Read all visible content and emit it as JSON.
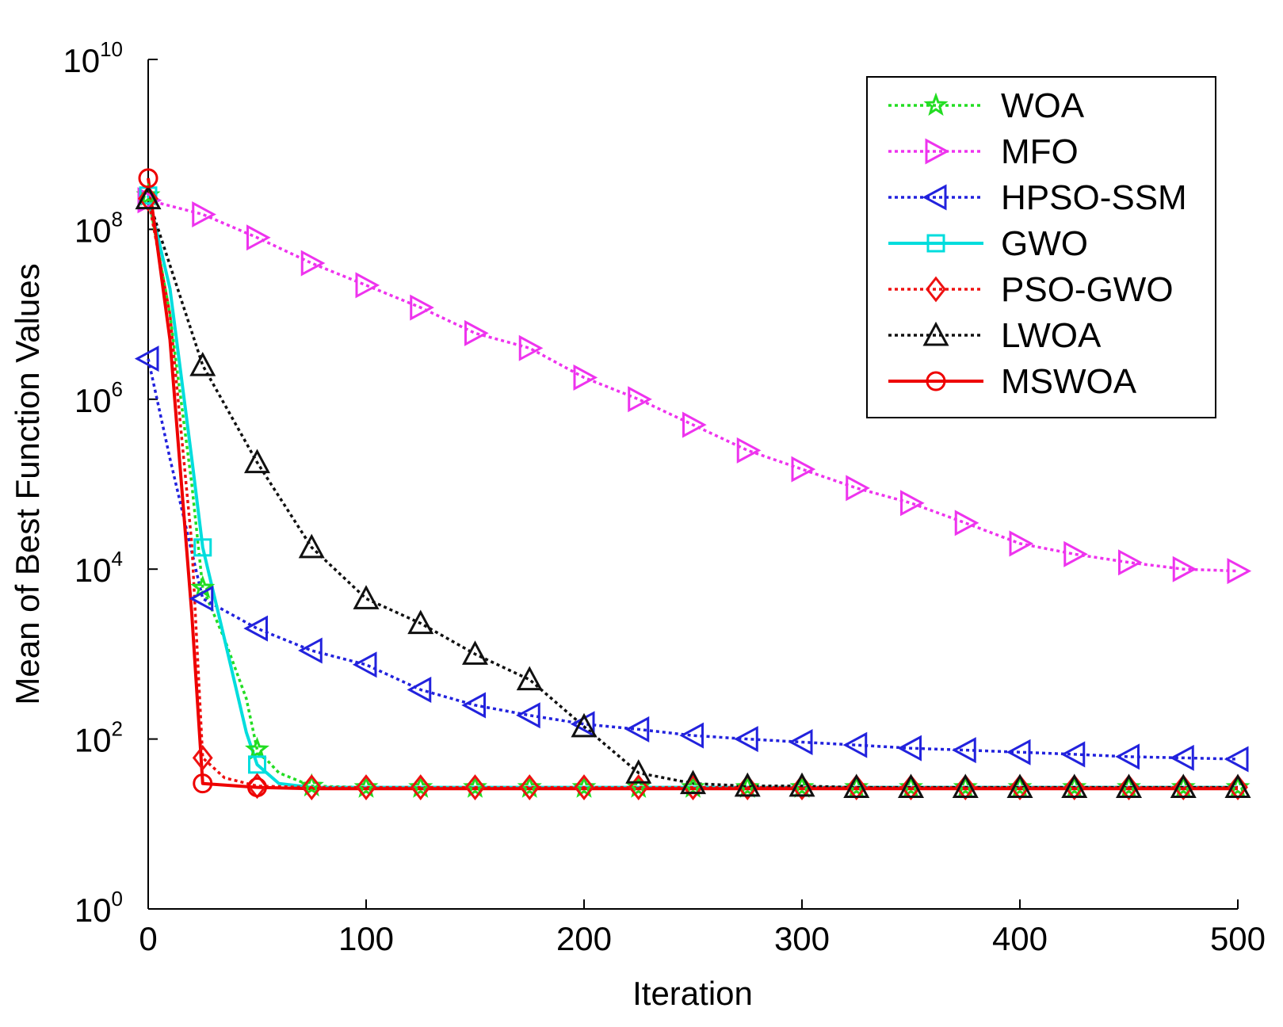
{
  "chart_data": {
    "type": "line",
    "title": "",
    "xlabel": "Iteration",
    "ylabel": "Mean of Best Function Values",
    "xlim": [
      0,
      500
    ],
    "ylim_log10": [
      0,
      10
    ],
    "yscale": "log",
    "x_ticks": [
      "0",
      "100",
      "200",
      "300",
      "400",
      "500"
    ],
    "y_ticks": [
      {
        "base": "10",
        "exp": "0"
      },
      {
        "base": "10",
        "exp": "2"
      },
      {
        "base": "10",
        "exp": "4"
      },
      {
        "base": "10",
        "exp": "6"
      },
      {
        "base": "10",
        "exp": "8"
      },
      {
        "base": "10",
        "exp": "10"
      }
    ],
    "legend_position": "top-right",
    "series": [
      {
        "name": "WOA",
        "color": "#22dd22",
        "dash": "dotted",
        "marker": "star",
        "lines": [
          [
            0,
            250000000.0
          ],
          [
            10,
            10000000.0
          ],
          [
            20,
            100000.0
          ],
          [
            25,
            6000
          ],
          [
            35,
            1500
          ],
          [
            45,
            300
          ],
          [
            50,
            75
          ],
          [
            60,
            40
          ],
          [
            75,
            28
          ],
          [
            100,
            27
          ],
          [
            150,
            27
          ],
          [
            200,
            27
          ],
          [
            250,
            27
          ],
          [
            300,
            27
          ],
          [
            350,
            27
          ],
          [
            400,
            27
          ],
          [
            450,
            27
          ],
          [
            500,
            27
          ]
        ],
        "markers": [
          [
            0,
            250000000.0
          ],
          [
            25,
            6000
          ],
          [
            50,
            75
          ],
          [
            75,
            28
          ],
          [
            100,
            27
          ],
          [
            125,
            27
          ],
          [
            150,
            27
          ],
          [
            175,
            27
          ],
          [
            200,
            27
          ],
          [
            225,
            27
          ],
          [
            250,
            27
          ],
          [
            275,
            27
          ],
          [
            300,
            27
          ],
          [
            325,
            27
          ],
          [
            350,
            27
          ],
          [
            375,
            27
          ],
          [
            400,
            27
          ],
          [
            425,
            27
          ],
          [
            450,
            27
          ],
          [
            475,
            27
          ],
          [
            500,
            27
          ]
        ]
      },
      {
        "name": "MFO",
        "color": "#ee33ee",
        "dash": "dotted",
        "marker": "triangle-right",
        "lines": [
          [
            0,
            220000000.0
          ],
          [
            25,
            150000000.0
          ],
          [
            50,
            80000000.0
          ],
          [
            75,
            40000000.0
          ],
          [
            100,
            22000000.0
          ],
          [
            125,
            12000000.0
          ],
          [
            150,
            6000000.0
          ],
          [
            175,
            4000000.0
          ],
          [
            200,
            1800000.0
          ],
          [
            225,
            1000000.0
          ],
          [
            250,
            500000.0
          ],
          [
            275,
            250000.0
          ],
          [
            300,
            150000.0
          ],
          [
            325,
            90000.0
          ],
          [
            350,
            60000.0
          ],
          [
            375,
            35000.0
          ],
          [
            400,
            20000.0
          ],
          [
            425,
            15000.0
          ],
          [
            450,
            12000.0
          ],
          [
            475,
            10000.0
          ],
          [
            500,
            9500
          ]
        ],
        "markers": [
          [
            0,
            220000000.0
          ],
          [
            25,
            150000000.0
          ],
          [
            50,
            80000000.0
          ],
          [
            75,
            40000000.0
          ],
          [
            100,
            22000000.0
          ],
          [
            125,
            12000000.0
          ],
          [
            150,
            6000000.0
          ],
          [
            175,
            4000000.0
          ],
          [
            200,
            1800000.0
          ],
          [
            225,
            1000000.0
          ],
          [
            250,
            500000.0
          ],
          [
            275,
            250000.0
          ],
          [
            300,
            150000.0
          ],
          [
            325,
            90000.0
          ],
          [
            350,
            60000.0
          ],
          [
            375,
            35000.0
          ],
          [
            400,
            20000.0
          ],
          [
            425,
            15000.0
          ],
          [
            450,
            12000.0
          ],
          [
            475,
            10000.0
          ],
          [
            500,
            9500
          ]
        ]
      },
      {
        "name": "HPSO-SSM",
        "color": "#2222dd",
        "dash": "dotted",
        "marker": "triangle-left",
        "lines": [
          [
            0,
            3000000.0
          ],
          [
            10,
            200000.0
          ],
          [
            25,
            4500
          ],
          [
            50,
            2000
          ],
          [
            75,
            1100
          ],
          [
            100,
            750
          ],
          [
            125,
            380
          ],
          [
            150,
            250
          ],
          [
            175,
            190
          ],
          [
            200,
            150
          ],
          [
            225,
            130
          ],
          [
            250,
            110
          ],
          [
            275,
            100
          ],
          [
            300,
            92
          ],
          [
            325,
            85
          ],
          [
            350,
            78
          ],
          [
            375,
            74
          ],
          [
            400,
            70
          ],
          [
            425,
            66
          ],
          [
            450,
            62
          ],
          [
            475,
            60
          ],
          [
            500,
            58
          ]
        ],
        "markers": [
          [
            0,
            3000000.0
          ],
          [
            25,
            4500
          ],
          [
            50,
            2000
          ],
          [
            75,
            1100
          ],
          [
            100,
            750
          ],
          [
            125,
            380
          ],
          [
            150,
            250
          ],
          [
            175,
            190
          ],
          [
            200,
            150
          ],
          [
            225,
            130
          ],
          [
            250,
            110
          ],
          [
            275,
            100
          ],
          [
            300,
            92
          ],
          [
            325,
            85
          ],
          [
            350,
            78
          ],
          [
            375,
            74
          ],
          [
            400,
            70
          ],
          [
            425,
            66
          ],
          [
            450,
            62
          ],
          [
            475,
            60
          ],
          [
            500,
            58
          ]
        ]
      },
      {
        "name": "GWO",
        "color": "#00dddd",
        "dash": "solid",
        "marker": "square",
        "lines": [
          [
            0,
            250000000.0
          ],
          [
            10,
            20000000.0
          ],
          [
            20,
            200000.0
          ],
          [
            25,
            18000.0
          ],
          [
            35,
            1500
          ],
          [
            45,
            120
          ],
          [
            50,
            50
          ],
          [
            60,
            30
          ],
          [
            75,
            27
          ],
          [
            100,
            27
          ],
          [
            200,
            27
          ],
          [
            300,
            27
          ],
          [
            400,
            27
          ],
          [
            500,
            27
          ]
        ],
        "markers": [
          [
            0,
            250000000.0
          ],
          [
            25,
            18000.0
          ],
          [
            50,
            50
          ]
        ]
      },
      {
        "name": "PSO-GWO",
        "color": "#ee1111",
        "dash": "dotted",
        "marker": "diamond",
        "lines": [
          [
            0,
            230000000.0
          ],
          [
            10,
            10000000.0
          ],
          [
            20,
            20000.0
          ],
          [
            25,
            60
          ],
          [
            35,
            35
          ],
          [
            50,
            28
          ],
          [
            75,
            27
          ],
          [
            100,
            27
          ],
          [
            200,
            27
          ],
          [
            300,
            27
          ],
          [
            400,
            27
          ],
          [
            500,
            27
          ]
        ],
        "markers": [
          [
            0,
            230000000.0
          ],
          [
            25,
            60
          ],
          [
            50,
            28
          ],
          [
            75,
            27
          ],
          [
            100,
            27
          ],
          [
            125,
            27
          ],
          [
            150,
            27
          ],
          [
            175,
            27
          ],
          [
            200,
            27
          ],
          [
            225,
            27
          ],
          [
            250,
            27
          ],
          [
            275,
            27
          ],
          [
            300,
            27
          ],
          [
            325,
            27
          ],
          [
            350,
            27
          ],
          [
            375,
            27
          ],
          [
            400,
            27
          ],
          [
            425,
            27
          ],
          [
            450,
            27
          ],
          [
            475,
            27
          ],
          [
            500,
            27
          ]
        ]
      },
      {
        "name": "LWOA",
        "color": "#111111",
        "dash": "dotted",
        "marker": "triangle-up",
        "lines": [
          [
            0,
            230000000.0
          ],
          [
            25,
            2500000.0
          ],
          [
            50,
            180000.0
          ],
          [
            75,
            18000.0
          ],
          [
            100,
            4500
          ],
          [
            125,
            2300
          ],
          [
            150,
            1000
          ],
          [
            175,
            500
          ],
          [
            200,
            140
          ],
          [
            225,
            40
          ],
          [
            250,
            30
          ],
          [
            275,
            28
          ],
          [
            300,
            28
          ],
          [
            325,
            27
          ],
          [
            350,
            27
          ],
          [
            375,
            27
          ],
          [
            400,
            27
          ],
          [
            425,
            27
          ],
          [
            450,
            27
          ],
          [
            475,
            27
          ],
          [
            500,
            27
          ]
        ],
        "markers": [
          [
            0,
            230000000.0
          ],
          [
            25,
            2500000.0
          ],
          [
            50,
            180000.0
          ],
          [
            75,
            18000.0
          ],
          [
            100,
            4500
          ],
          [
            125,
            2300
          ],
          [
            150,
            1000
          ],
          [
            175,
            500
          ],
          [
            200,
            140
          ],
          [
            225,
            40
          ],
          [
            250,
            30
          ],
          [
            275,
            28
          ],
          [
            300,
            28
          ],
          [
            325,
            27
          ],
          [
            350,
            27
          ],
          [
            375,
            27
          ],
          [
            400,
            27
          ],
          [
            425,
            27
          ],
          [
            450,
            27
          ],
          [
            475,
            27
          ],
          [
            500,
            27
          ]
        ]
      },
      {
        "name": "MSWOA",
        "color": "#ee0000",
        "dash": "solid",
        "marker": "circle",
        "lines": [
          [
            0,
            400000000.0
          ],
          [
            10,
            5000000.0
          ],
          [
            20,
            3000
          ],
          [
            25,
            30
          ],
          [
            50,
            27
          ],
          [
            75,
            26
          ],
          [
            100,
            26
          ],
          [
            150,
            26
          ],
          [
            200,
            26
          ],
          [
            250,
            26
          ],
          [
            300,
            26
          ],
          [
            350,
            26
          ],
          [
            400,
            26
          ],
          [
            450,
            26
          ],
          [
            500,
            26
          ]
        ],
        "markers": [
          [
            0,
            400000000.0
          ],
          [
            25,
            30
          ],
          [
            50,
            27
          ]
        ]
      }
    ]
  }
}
